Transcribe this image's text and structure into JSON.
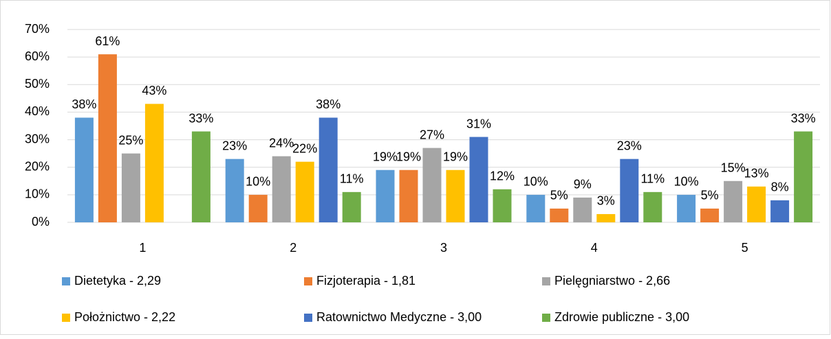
{
  "chart_data": {
    "type": "bar",
    "categories": [
      "1",
      "2",
      "3",
      "4",
      "5"
    ],
    "ylim": [
      0,
      70
    ],
    "yticks": [
      {
        "value": 0,
        "label": "0%"
      },
      {
        "value": 10,
        "label": "10%"
      },
      {
        "value": 20,
        "label": "20%"
      },
      {
        "value": 30,
        "label": "30%"
      },
      {
        "value": 40,
        "label": "40%"
      },
      {
        "value": 50,
        "label": "50%"
      },
      {
        "value": 60,
        "label": "60%"
      },
      {
        "value": 70,
        "label": "70%"
      }
    ],
    "grid": true,
    "legend": "bottom",
    "series": [
      {
        "name": "Dietetyka - 2,29",
        "color": "#5b9bd5",
        "values": [
          38,
          23,
          19,
          10,
          10
        ],
        "value_labels": [
          "38%",
          "23%",
          "19%",
          "10%",
          "10%"
        ]
      },
      {
        "name": "Fizjoterapia - 1,81",
        "color": "#ed7d31",
        "values": [
          61,
          10,
          19,
          5,
          5
        ],
        "value_labels": [
          "61%",
          "10%",
          "19%",
          "5%",
          "5%"
        ]
      },
      {
        "name": "Pielęgniarstwo - 2,66",
        "color": "#a5a5a5",
        "values": [
          25,
          24,
          27,
          9,
          15
        ],
        "value_labels": [
          "25%",
          "24%",
          "27%",
          "9%",
          "15%"
        ]
      },
      {
        "name": "Położnictwo - 2,22",
        "color": "#ffc000",
        "values": [
          43,
          22,
          19,
          3,
          13
        ],
        "value_labels": [
          "43%",
          "22%",
          "19%",
          "3%",
          "13%"
        ]
      },
      {
        "name": "Ratownictwo Medyczne - 3,00",
        "color": "#4472c4",
        "values": [
          null,
          38,
          31,
          23,
          8
        ],
        "value_labels": [
          null,
          "38%",
          "31%",
          "23%",
          "8%"
        ]
      },
      {
        "name": "Zdrowie publiczne - 3,00",
        "color": "#70ad47",
        "values": [
          33,
          11,
          12,
          11,
          33
        ],
        "value_labels": [
          "33%",
          "11%",
          "12%",
          "11%",
          "33%"
        ]
      }
    ]
  }
}
